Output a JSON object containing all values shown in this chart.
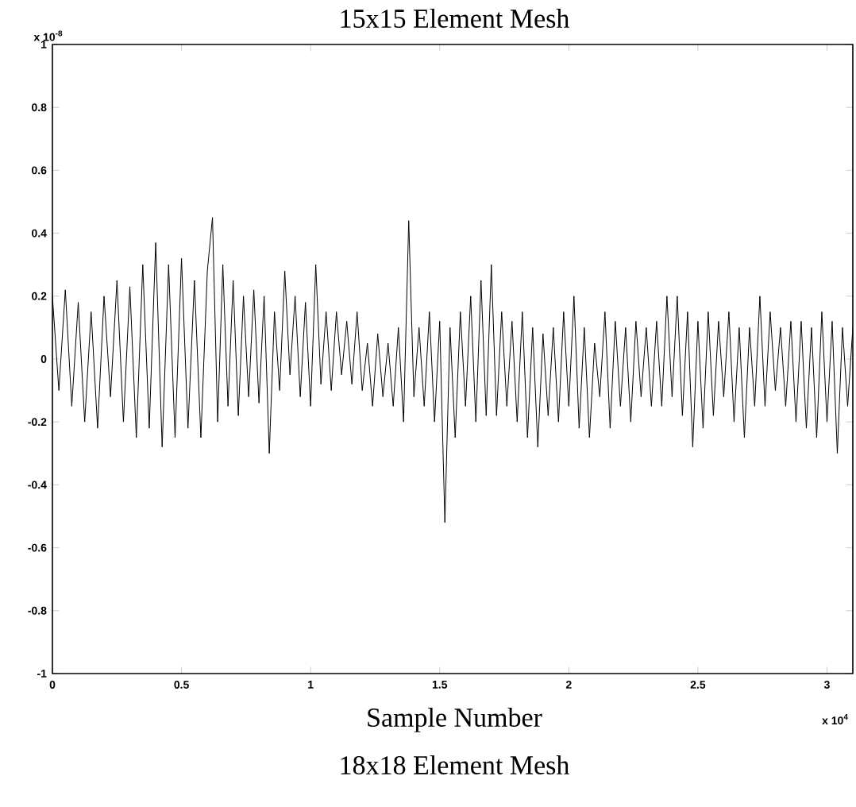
{
  "chart_data": {
    "type": "line",
    "title": "15x15 Element Mesh",
    "xlabel": "Sample Number",
    "annotations": [
      "x 10$^{-8}$",
      "x 10$^{4}$",
      "18x18 Element Mesh"
    ],
    "xlim": [
      0,
      3.1
    ],
    "ylim": [
      -1,
      1
    ],
    "xticks": [
      0,
      0.5,
      1,
      1.5,
      2,
      2.5,
      3
    ],
    "yticks": [
      -1,
      -0.8,
      -0.6,
      -0.4,
      -0.2,
      0,
      0.2,
      0.4,
      0.6,
      0.8,
      1
    ],
    "series": [
      {
        "color": "#000000",
        "x": [
          0,
          0.025,
          0.05,
          0.075,
          0.1,
          0.125,
          0.15,
          0.175,
          0.2,
          0.225,
          0.25,
          0.275,
          0.3,
          0.325,
          0.35,
          0.375,
          0.4,
          0.425,
          0.45,
          0.475,
          0.5,
          0.525,
          0.55,
          0.575,
          0.6,
          0.62,
          0.64,
          0.66,
          0.68,
          0.7,
          0.72,
          0.74,
          0.76,
          0.78,
          0.8,
          0.82,
          0.84,
          0.86,
          0.88,
          0.9,
          0.92,
          0.94,
          0.96,
          0.98,
          1.0,
          1.02,
          1.04,
          1.06,
          1.08,
          1.1,
          1.12,
          1.14,
          1.16,
          1.18,
          1.2,
          1.22,
          1.24,
          1.26,
          1.28,
          1.3,
          1.32,
          1.34,
          1.36,
          1.38,
          1.4,
          1.42,
          1.44,
          1.46,
          1.48,
          1.5,
          1.52,
          1.54,
          1.56,
          1.58,
          1.6,
          1.62,
          1.64,
          1.66,
          1.68,
          1.7,
          1.72,
          1.74,
          1.76,
          1.78,
          1.8,
          1.82,
          1.84,
          1.86,
          1.88,
          1.9,
          1.92,
          1.94,
          1.96,
          1.98,
          2.0,
          2.02,
          2.04,
          2.06,
          2.08,
          2.1,
          2.12,
          2.14,
          2.16,
          2.18,
          2.2,
          2.22,
          2.24,
          2.26,
          2.28,
          2.3,
          2.32,
          2.34,
          2.36,
          2.38,
          2.4,
          2.42,
          2.44,
          2.46,
          2.48,
          2.5,
          2.52,
          2.54,
          2.56,
          2.58,
          2.6,
          2.62,
          2.64,
          2.66,
          2.68,
          2.7,
          2.72,
          2.74,
          2.76,
          2.78,
          2.8,
          2.82,
          2.84,
          2.86,
          2.88,
          2.9,
          2.92,
          2.94,
          2.96,
          2.98,
          3.0,
          3.02,
          3.04,
          3.06,
          3.08,
          3.1
        ],
        "values": [
          0.2,
          -0.1,
          0.22,
          -0.15,
          0.18,
          -0.2,
          0.15,
          -0.22,
          0.2,
          -0.12,
          0.25,
          -0.2,
          0.23,
          -0.25,
          0.3,
          -0.22,
          0.37,
          -0.28,
          0.3,
          -0.25,
          0.32,
          -0.22,
          0.25,
          -0.25,
          0.28,
          0.45,
          -0.2,
          0.3,
          -0.15,
          0.25,
          -0.18,
          0.2,
          -0.12,
          0.22,
          -0.14,
          0.2,
          -0.3,
          0.15,
          -0.1,
          0.28,
          -0.05,
          0.2,
          -0.12,
          0.18,
          -0.15,
          0.3,
          -0.08,
          0.15,
          -0.1,
          0.15,
          -0.05,
          0.12,
          -0.08,
          0.15,
          -0.1,
          0.05,
          -0.15,
          0.08,
          -0.12,
          0.05,
          -0.15,
          0.1,
          -0.2,
          0.44,
          -0.12,
          0.1,
          -0.15,
          0.15,
          -0.2,
          0.12,
          -0.52,
          0.1,
          -0.25,
          0.15,
          -0.15,
          0.2,
          -0.2,
          0.25,
          -0.18,
          0.3,
          -0.18,
          0.15,
          -0.15,
          0.12,
          -0.2,
          0.15,
          -0.25,
          0.1,
          -0.28,
          0.08,
          -0.18,
          0.1,
          -0.2,
          0.15,
          -0.15,
          0.2,
          -0.22,
          0.1,
          -0.25,
          0.05,
          -0.12,
          0.15,
          -0.22,
          0.12,
          -0.15,
          0.1,
          -0.2,
          0.12,
          -0.12,
          0.1,
          -0.15,
          0.12,
          -0.15,
          0.2,
          -0.12,
          0.2,
          -0.18,
          0.15,
          -0.28,
          0.12,
          -0.22,
          0.15,
          -0.18,
          0.12,
          -0.12,
          0.15,
          -0.2,
          0.1,
          -0.25,
          0.1,
          -0.15,
          0.2,
          -0.15,
          0.15,
          -0.1,
          0.1,
          -0.15,
          0.12,
          -0.2,
          0.12,
          -0.22,
          0.1,
          -0.25,
          0.15,
          -0.2,
          0.12,
          -0.3,
          0.1,
          -0.15,
          0.1
        ]
      }
    ]
  }
}
